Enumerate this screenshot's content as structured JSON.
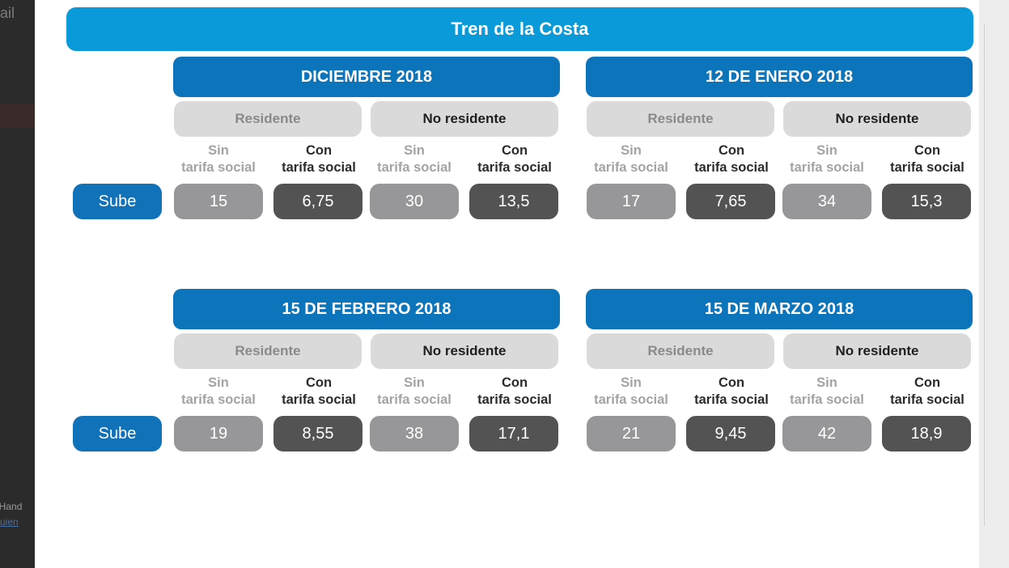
{
  "background_fragments": {
    "top": "ail",
    "middle": "le Hand",
    "link": "uien"
  },
  "title": "Tren de la Costa",
  "row_label": "Sube",
  "category_labels": {
    "resident": "Residente",
    "non_resident": "No residente"
  },
  "sub_labels": {
    "sin_line1": "Sin",
    "con_line1": "Con",
    "line2": "tarifa social"
  },
  "periods": [
    {
      "label": "DICIEMBRE 2018",
      "values": [
        "15",
        "6,75",
        "30",
        "13,5"
      ]
    },
    {
      "label": "12 DE ENERO 2018",
      "values": [
        "17",
        "7,65",
        "34",
        "15,3"
      ]
    },
    {
      "label": "15 DE FEBRERO 2018",
      "values": [
        "19",
        "8,55",
        "38",
        "17,1"
      ]
    },
    {
      "label": "15 DE MARZO 2018",
      "values": [
        "21",
        "9,45",
        "42",
        "18,9"
      ]
    }
  ],
  "colors": {
    "title_bar": "#0a99d9",
    "period_header": "#0c74bb",
    "sube_badge": "#1272b9",
    "category_pill": "#dadada",
    "value_light": "#97979a",
    "value_dark": "#535353"
  }
}
